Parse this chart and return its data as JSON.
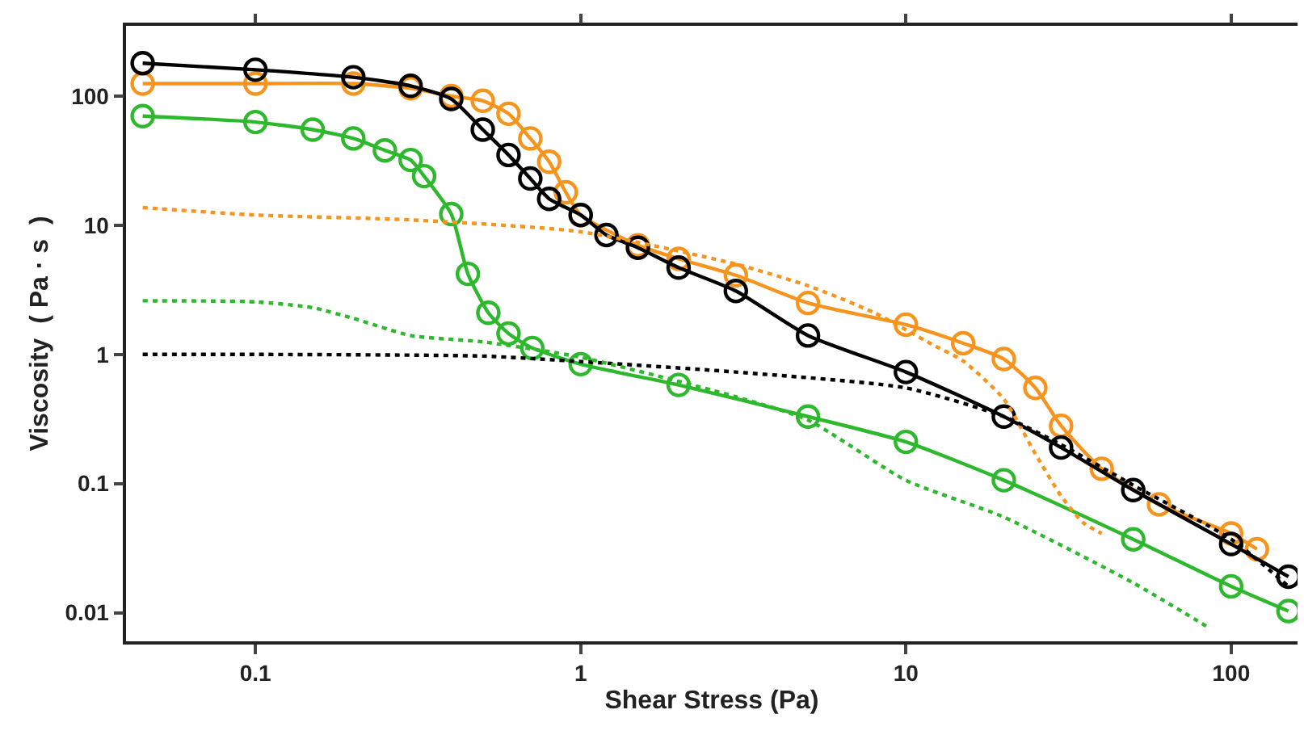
{
  "chart_data": {
    "type": "line",
    "xlabel": "Shear Stress (Pa)",
    "ylabel": "Viscosity  ( Pa · s  )",
    "log": "xy",
    "xlim": [
      0.04,
      160
    ],
    "ylim": [
      0.006,
      350
    ],
    "xticks": [
      0.1,
      1,
      10,
      100
    ],
    "yticks": [
      0.01,
      0.1,
      1,
      10,
      100
    ],
    "series": [
      {
        "color": "#f7941d",
        "marker": "circle",
        "line_style": "solid",
        "x": [
          0.045,
          0.1,
          0.2,
          0.3,
          0.4,
          0.5,
          0.6,
          0.7,
          0.8,
          0.9,
          1,
          1.5,
          2,
          3,
          5,
          10,
          15,
          20,
          25,
          30,
          40,
          60,
          100,
          120
        ],
        "values": [
          125,
          125,
          125,
          115,
          100,
          92,
          73,
          47,
          31,
          18,
          12,
          7,
          5.5,
          4.1,
          2.5,
          1.7,
          1.22,
          0.92,
          0.55,
          0.28,
          0.13,
          0.069,
          0.041,
          0.031
        ]
      },
      {
        "color": "#000000",
        "marker": "circle",
        "line_style": "solid",
        "x": [
          0.045,
          0.1,
          0.2,
          0.3,
          0.4,
          0.5,
          0.6,
          0.7,
          0.8,
          1,
          1.2,
          1.5,
          2,
          3,
          5,
          10,
          20,
          30,
          50,
          100,
          150
        ],
        "values": [
          180,
          160,
          140,
          120,
          95,
          55,
          35,
          23,
          16,
          12,
          8.4,
          6.7,
          4.7,
          3.1,
          1.4,
          0.73,
          0.33,
          0.19,
          0.089,
          0.034,
          0.019
        ]
      },
      {
        "color": "#2db82d",
        "marker": "circle",
        "line_style": "solid",
        "x": [
          0.045,
          0.1,
          0.15,
          0.2,
          0.25,
          0.3,
          0.33,
          0.4,
          0.45,
          0.52,
          0.6,
          0.71,
          1,
          2,
          5,
          10,
          20,
          50,
          100,
          150
        ],
        "values": [
          70,
          63,
          55,
          47,
          38,
          32,
          24,
          12.2,
          4.2,
          2.1,
          1.45,
          1.12,
          0.84,
          0.58,
          0.33,
          0.21,
          0.106,
          0.037,
          0.016,
          0.0103
        ]
      },
      {
        "color": "#f7941d",
        "marker": "none",
        "line_style": "dotted",
        "x": [
          0.045,
          0.1,
          0.3,
          1,
          3,
          5,
          8,
          12,
          15,
          20,
          25,
          30,
          35,
          40
        ],
        "values": [
          13.7,
          12,
          11,
          8.9,
          5,
          3.4,
          2.1,
          1.2,
          0.89,
          0.45,
          0.17,
          0.08,
          0.05,
          0.041
        ]
      },
      {
        "color": "#000000",
        "marker": "none",
        "line_style": "dotted",
        "x": [
          0.045,
          0.1,
          0.5,
          1,
          3,
          10,
          20,
          30,
          50,
          100,
          150
        ],
        "values": [
          1,
          1,
          0.97,
          0.88,
          0.73,
          0.55,
          0.33,
          0.2,
          0.097,
          0.037,
          0.016
        ]
      },
      {
        "color": "#2db82d",
        "marker": "none",
        "line_style": "dotted",
        "x": [
          0.045,
          0.1,
          0.15,
          0.2,
          0.3,
          0.5,
          1,
          3,
          5,
          10,
          20,
          50,
          85
        ],
        "values": [
          2.6,
          2.55,
          2.3,
          1.9,
          1.4,
          1.25,
          0.95,
          0.47,
          0.31,
          0.106,
          0.055,
          0.017,
          0.0077
        ]
      }
    ]
  }
}
